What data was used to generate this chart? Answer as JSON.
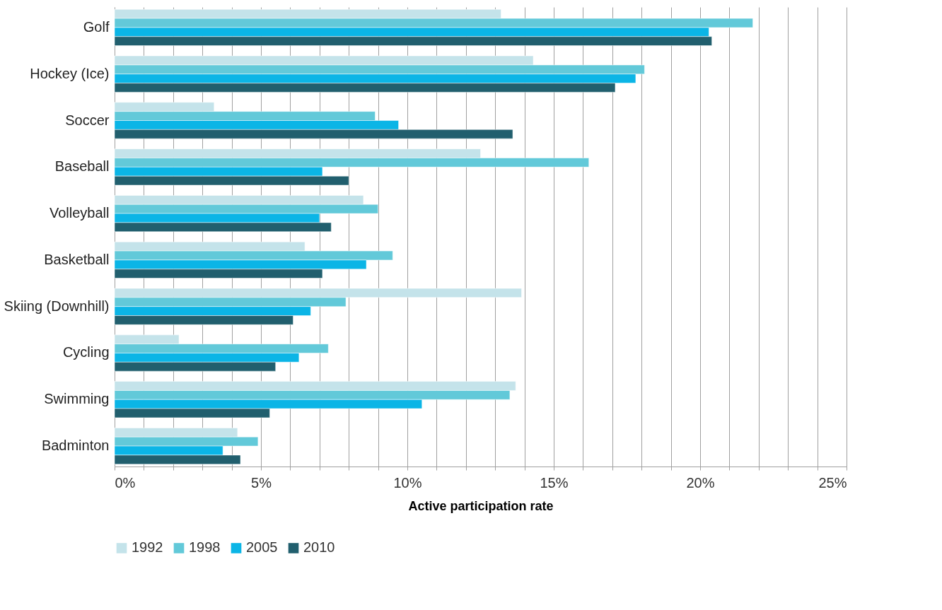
{
  "chart_data": {
    "type": "bar",
    "orientation": "horizontal",
    "xlabel": "Active participation rate",
    "categories": [
      "Golf",
      "Hockey (Ice)",
      "Soccer",
      "Baseball",
      "Volleyball",
      "Basketball",
      "Skiing (Downhill)",
      "Cycling",
      "Swimming",
      "Badminton"
    ],
    "series": [
      {
        "name": "1992",
        "color": "#c4e3ea",
        "values": [
          13.2,
          14.3,
          3.4,
          12.5,
          8.5,
          6.5,
          13.9,
          2.2,
          13.7,
          4.2
        ]
      },
      {
        "name": "1998",
        "color": "#62c9d9",
        "values": [
          21.8,
          18.1,
          8.9,
          16.2,
          9.0,
          9.5,
          7.9,
          7.3,
          13.5,
          4.9
        ]
      },
      {
        "name": "2005",
        "color": "#0bb5e6",
        "values": [
          20.3,
          17.8,
          9.7,
          7.1,
          7.0,
          8.6,
          6.7,
          6.3,
          10.5,
          3.7
        ]
      },
      {
        "name": "2010",
        "color": "#215f6e",
        "values": [
          20.4,
          17.1,
          13.6,
          8.0,
          7.4,
          7.1,
          6.1,
          5.5,
          5.3,
          4.3
        ]
      }
    ],
    "xlim": [
      0,
      25
    ],
    "xticks": [
      {
        "value": 0,
        "label": "0%"
      },
      {
        "value": 1,
        "label": null
      },
      {
        "value": 2,
        "label": null
      },
      {
        "value": 3,
        "label": null
      },
      {
        "value": 4,
        "label": null
      },
      {
        "value": 5,
        "label": "5%"
      },
      {
        "value": 6,
        "label": null
      },
      {
        "value": 7,
        "label": null
      },
      {
        "value": 8,
        "label": null
      },
      {
        "value": 9,
        "label": null
      },
      {
        "value": 10,
        "label": "10%"
      },
      {
        "value": 11,
        "label": null
      },
      {
        "value": 12,
        "label": null
      },
      {
        "value": 13,
        "label": null
      },
      {
        "value": 14,
        "label": null
      },
      {
        "value": 15,
        "label": "15%"
      },
      {
        "value": 16,
        "label": null
      },
      {
        "value": 17,
        "label": null
      },
      {
        "value": 18,
        "label": null
      },
      {
        "value": 19,
        "label": null
      },
      {
        "value": 20,
        "label": "20%"
      },
      {
        "value": 21,
        "label": null
      },
      {
        "value": 22,
        "label": null
      },
      {
        "value": 23,
        "label": null
      },
      {
        "value": 24,
        "label": null
      },
      {
        "value": 25,
        "label": "25%"
      }
    ],
    "grid": "x",
    "legend": "bottom"
  }
}
